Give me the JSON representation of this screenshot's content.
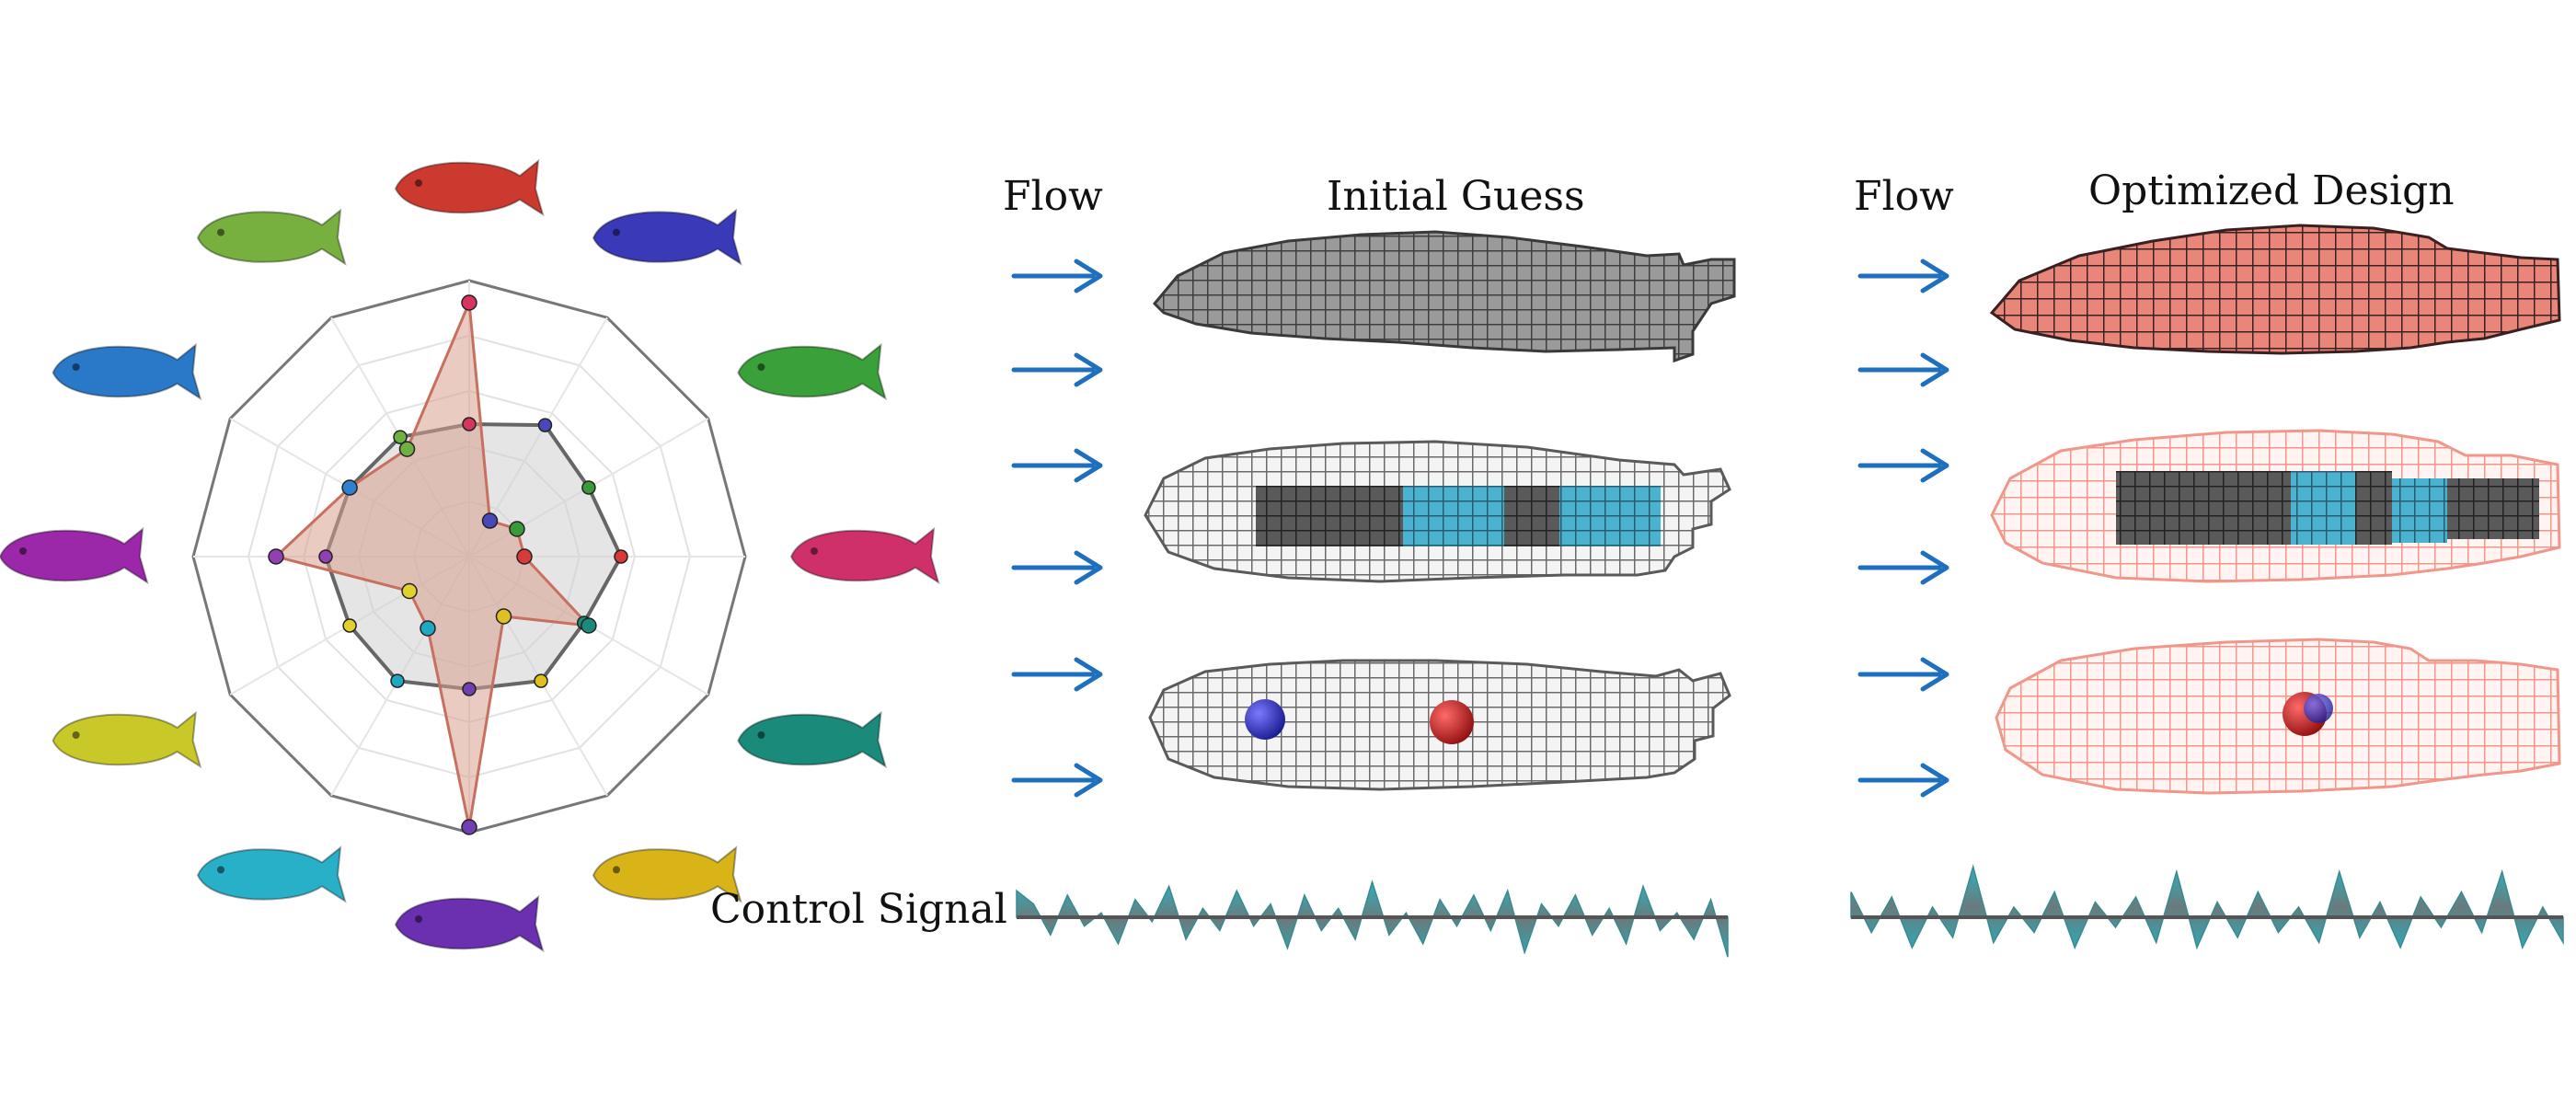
{
  "labels": {
    "flow_left": "Flow",
    "initial_guess": "Initial Guess",
    "flow_right": "Flow",
    "optimized_design": "Optimized Design",
    "control_signal": "Control Signal"
  },
  "colors": {
    "arrow": "#1f6fbf",
    "initial_body": "#8e8e8e",
    "optimized_body": "#e27a6f",
    "wireframe_initial": "#6f6f6f",
    "wireframe_optimized": "#f0a59a",
    "muscle_cyan": "#3aa9c9",
    "signal_top": "#2fa8b5",
    "signal_line": "#555555",
    "radar_fill": "#d8a090",
    "radar_inner_fill": "#cfcfcf"
  },
  "radar": {
    "axes_count": 12,
    "inner_values": [
      0.48,
      0.55,
      0.5,
      0.55,
      0.48,
      0.52,
      0.48,
      0.52,
      0.5,
      0.52,
      0.5,
      0.5
    ],
    "outer_values": [
      0.92,
      0.15,
      0.2,
      0.2,
      0.5,
      0.25,
      0.98,
      0.3,
      0.25,
      0.7,
      0.5,
      0.45
    ],
    "marker_colors": [
      "#d8345f",
      "#4848b8",
      "#3a9a3a",
      "#d83a3a",
      "#1a8a7a",
      "#e0c020",
      "#7040b0",
      "#20a8c0",
      "#e0d030",
      "#9040b0",
      "#3080d0",
      "#70b040"
    ]
  },
  "gallery": {
    "fish_colors": [
      "#cc3a2f",
      "#3a3ab8",
      "#3aa03a",
      "#d0306a",
      "#1a8a7a",
      "#d8b418",
      "#6a30b0",
      "#28b0c8",
      "#c8c828",
      "#9a28a8",
      "#2a78c8",
      "#78b040"
    ]
  },
  "signal_left": [
    0.6,
    0.3,
    -0.4,
    0.5,
    -0.2,
    0.1,
    -0.6,
    0.4,
    -0.1,
    0.7,
    -0.5,
    0.2,
    -0.3,
    0.6,
    -0.2,
    0.3,
    -0.7,
    0.5,
    -0.3,
    0.2,
    -0.5,
    0.8,
    -0.4,
    0.1,
    -0.6,
    0.4,
    -0.2,
    0.5,
    -0.3,
    0.6,
    -0.8,
    0.3,
    -0.2,
    0.5,
    -0.4,
    0.2,
    -0.6,
    0.7,
    -0.3,
    0.1,
    -0.5,
    0.4,
    -0.9
  ],
  "signal_right": [
    0.5,
    -0.3,
    0.4,
    -0.6,
    0.2,
    -0.4,
    1.0,
    -0.5,
    0.2,
    -0.3,
    0.5,
    -0.6,
    0.3,
    -0.2,
    0.4,
    -0.5,
    0.9,
    -0.6,
    0.3,
    -0.4,
    0.5,
    -0.3,
    0.2,
    -0.5,
    0.9,
    -0.4,
    0.3,
    -0.6,
    0.4,
    -0.2,
    0.5,
    -0.3,
    0.9,
    -0.6,
    0.2,
    -0.5
  ]
}
